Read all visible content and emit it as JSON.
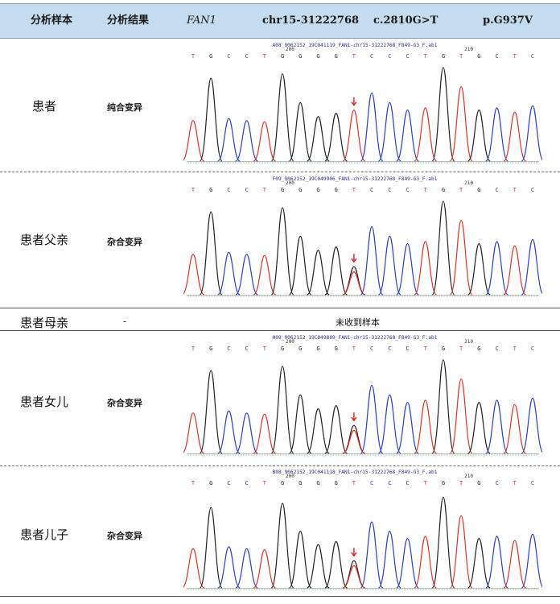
{
  "header": {
    "col1": "分析样本",
    "col2": "分析结果",
    "col3": "FAN1",
    "col4": "chr15-31222768",
    "col5": "c.2810G>T",
    "col6": "p.G937V"
  },
  "bases": [
    "T",
    "G",
    "C",
    "C",
    "T",
    "G",
    "G",
    "G",
    "G",
    "T",
    "C",
    "C",
    "C",
    "T",
    "G",
    "T",
    "G",
    "C",
    "T",
    "C"
  ],
  "colors": {
    "T": "#d9342b",
    "G": "#222222",
    "C": "#2b3fc0",
    "A": "#2a9d3a",
    "arrow": "#e02020"
  },
  "rows": [
    {
      "sample": "患者",
      "result": "纯合变异",
      "file": "A08_9062152_19C041119_FAN1-chr15-31222768_F849-G3_F.ab1",
      "pos1": "200",
      "pos2": "210",
      "zygosity": "homozygous"
    },
    {
      "sample": "患者父亲",
      "result": "杂合变异",
      "file": "F09_9062152_19C049906_FAN1-chr15-31222768_F849-G3_F.ab1",
      "pos1": "200",
      "pos2": "210",
      "zygosity": "heterozygous"
    },
    {
      "sample": "患者母亲",
      "result": "-",
      "note": "未收到样本"
    },
    {
      "sample": "患者女儿",
      "result": "杂合变异",
      "file": "H09_9062152_19C049809_FAN1-chr15-31222768_F849-G3_F.ab1",
      "pos1": "200",
      "pos2": "210",
      "zygosity": "heterozygous"
    },
    {
      "sample": "患者儿子",
      "result": "杂合变异",
      "file": "B08_9062152_19C041118_FAN1-chr15-31222768_F849-G3_F.ab1",
      "pos1": "200",
      "pos2": "210",
      "zygosity": "heterozygous"
    }
  ]
}
